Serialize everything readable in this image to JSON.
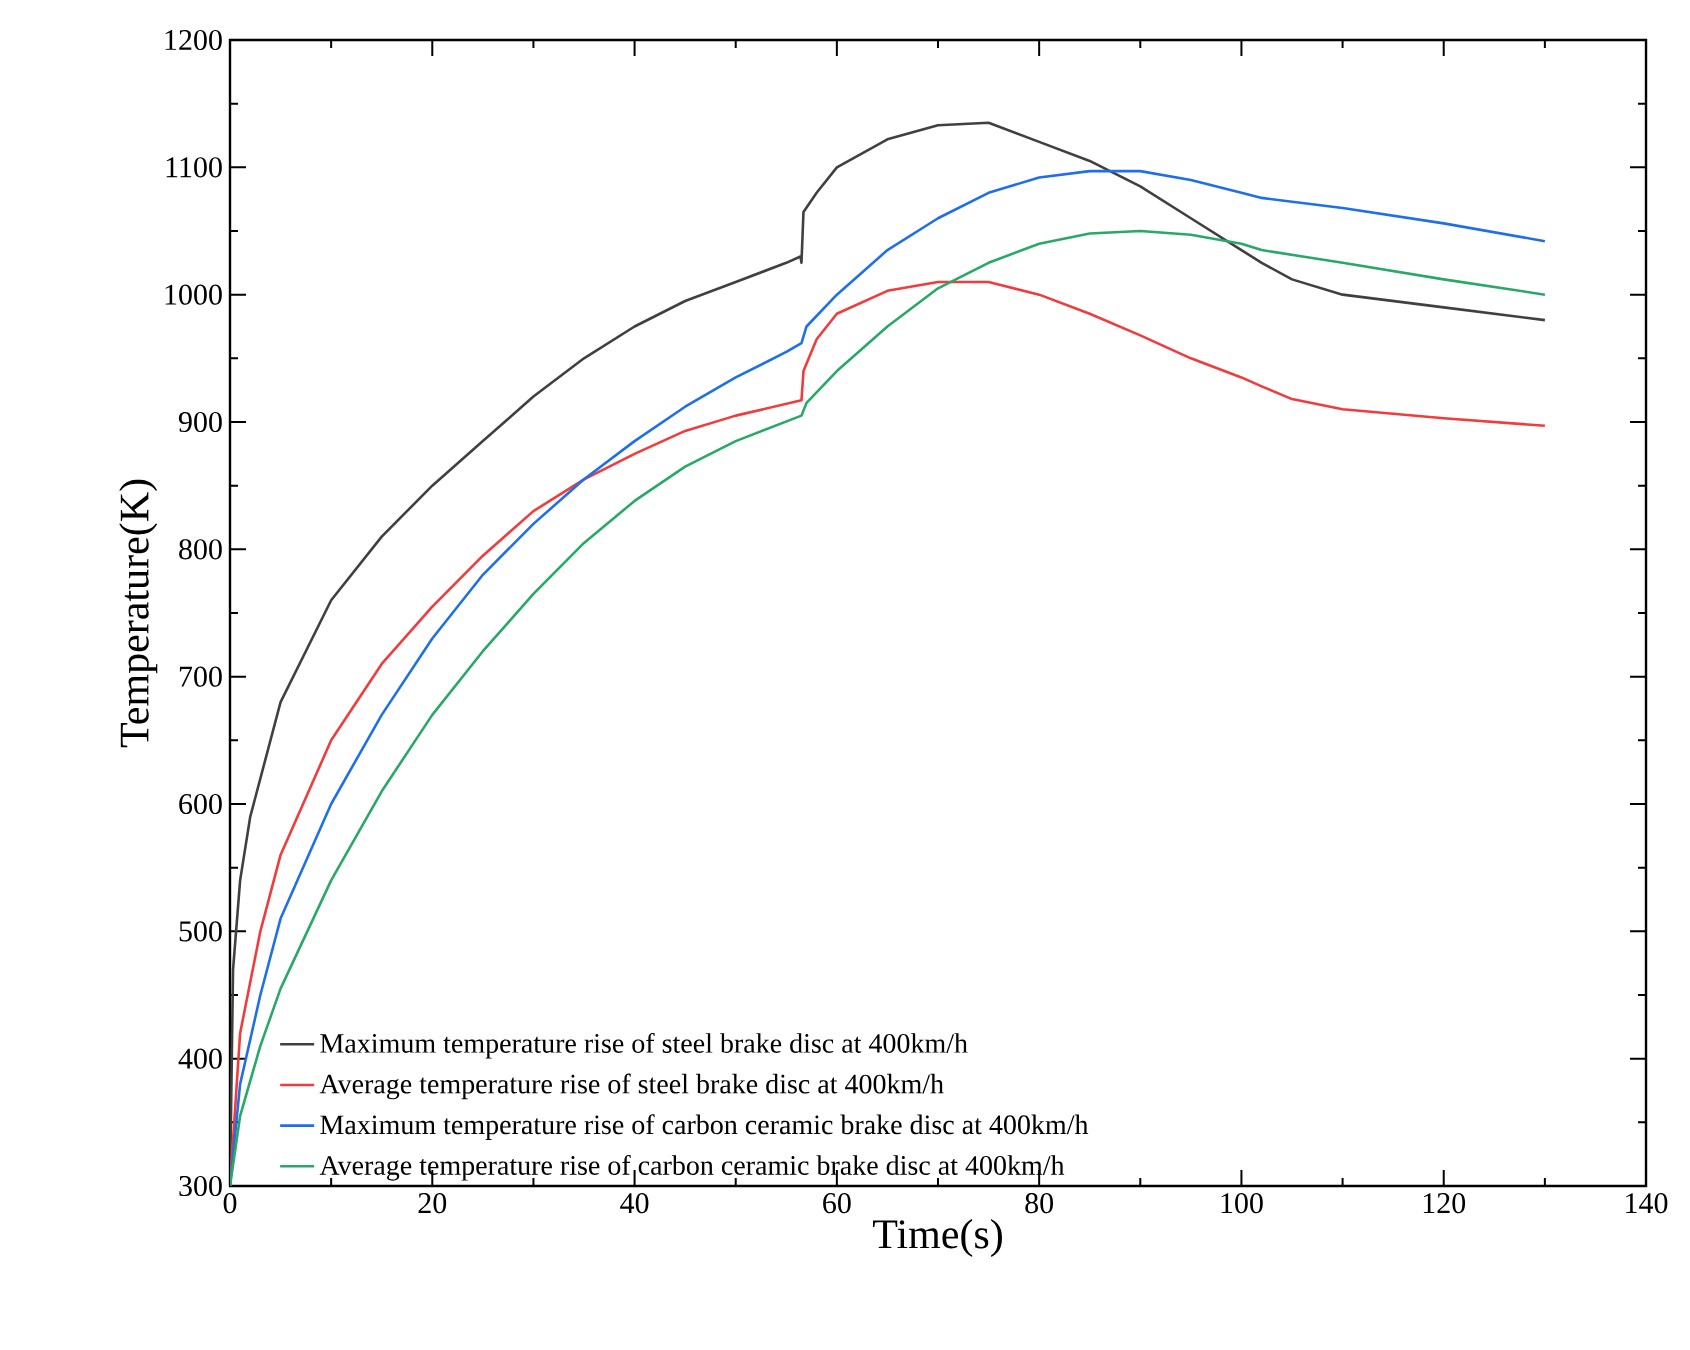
{
  "chart_data": {
    "type": "line",
    "xlabel": "Time(s)",
    "ylabel": "Temperature(K)",
    "xlim": [
      0,
      140
    ],
    "ylim": [
      300,
      1200
    ],
    "xticks": [
      0,
      20,
      40,
      60,
      80,
      100,
      120,
      140
    ],
    "yticks": [
      300,
      400,
      500,
      600,
      700,
      800,
      900,
      1000,
      1100,
      1200
    ],
    "grid": false,
    "legend": "bottom left",
    "line_style": "solid",
    "marker": "none",
    "series": [
      {
        "name": "Maximum temperature rise of steel brake disc at 400km/h",
        "color": "#404040",
        "x": [
          0,
          0.3,
          1,
          2,
          5,
          10,
          15,
          20,
          25,
          30,
          35,
          40,
          45,
          50,
          55,
          56.4,
          56.5,
          56.7,
          58,
          60,
          65,
          70,
          75,
          80,
          85,
          90,
          95,
          100,
          102,
          105,
          110,
          120,
          130
        ],
        "values": [
          300,
          470,
          540,
          590,
          680,
          760,
          810,
          850,
          885,
          920,
          950,
          975,
          995,
          1010,
          1025,
          1030,
          1025,
          1065,
          1080,
          1100,
          1122,
          1133,
          1135,
          1120,
          1105,
          1085,
          1060,
          1035,
          1025,
          1012,
          1000,
          990,
          980
        ]
      },
      {
        "name": "Average temperature rise of steel brake disc at 400km/h",
        "color": "#f03c3c",
        "x": [
          0,
          1,
          3,
          5,
          10,
          15,
          20,
          25,
          30,
          35,
          40,
          45,
          50,
          56.5,
          56.7,
          58,
          60,
          65,
          70,
          75,
          80,
          85,
          90,
          95,
          100,
          102,
          105,
          110,
          120,
          130
        ],
        "values": [
          300,
          420,
          500,
          560,
          650,
          710,
          755,
          795,
          830,
          855,
          875,
          893,
          905,
          917,
          940,
          965,
          985,
          1003,
          1010,
          1010,
          1000,
          985,
          968,
          950,
          935,
          928,
          918,
          910,
          903,
          897
        ]
      },
      {
        "name": "Maximum temperature rise of carbon ceramic brake disc at 400km/h",
        "color": "#1f6fe8",
        "x": [
          0,
          1,
          3,
          5,
          10,
          15,
          20,
          25,
          30,
          35,
          40,
          45,
          50,
          55,
          56.5,
          57,
          60,
          65,
          70,
          75,
          80,
          85,
          90,
          95,
          100,
          102,
          110,
          120,
          130
        ],
        "values": [
          300,
          380,
          450,
          510,
          600,
          670,
          730,
          780,
          820,
          855,
          885,
          912,
          935,
          955,
          962,
          975,
          1000,
          1035,
          1060,
          1080,
          1092,
          1097,
          1097,
          1090,
          1080,
          1076,
          1068,
          1056,
          1042
        ]
      },
      {
        "name": "Average temperature rise of carbon ceramic brake disc at 400km/h",
        "color": "#2aa868",
        "x": [
          0,
          1,
          3,
          5,
          10,
          15,
          20,
          25,
          30,
          35,
          40,
          45,
          50,
          56.5,
          57,
          60,
          65,
          70,
          75,
          80,
          85,
          90,
          95,
          100,
          102,
          110,
          120,
          130
        ],
        "values": [
          300,
          355,
          410,
          455,
          540,
          610,
          670,
          720,
          765,
          805,
          838,
          865,
          885,
          905,
          915,
          940,
          975,
          1005,
          1025,
          1040,
          1048,
          1050,
          1047,
          1040,
          1035,
          1025,
          1012,
          1000
        ]
      }
    ]
  }
}
